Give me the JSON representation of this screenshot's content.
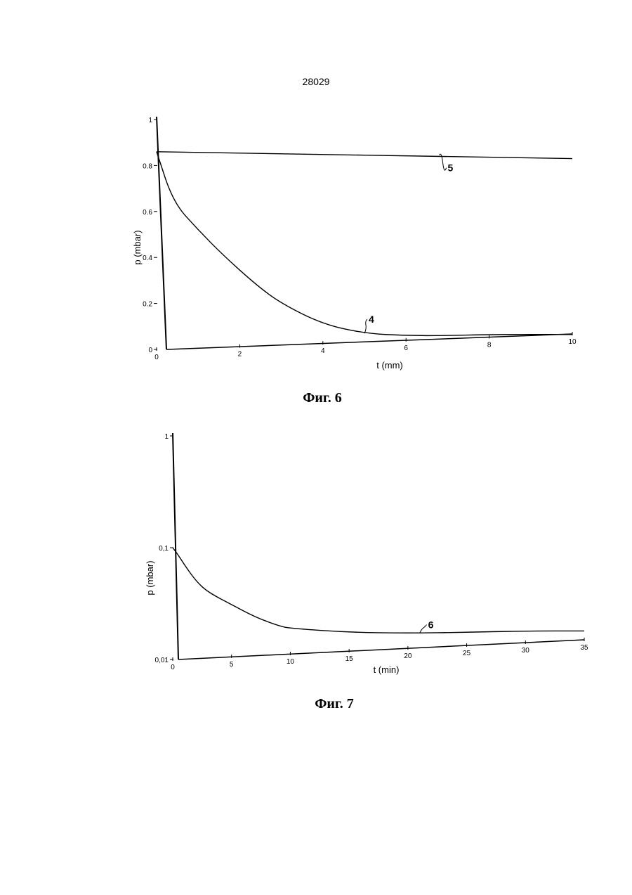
{
  "page": {
    "number": "28029"
  },
  "chart_data": [
    {
      "type": "line",
      "caption": "Фиг. 6",
      "xlabel": "t (mm)",
      "ylabel": "p (mbar)",
      "xlim": [
        0,
        10
      ],
      "ylim": [
        0,
        1
      ],
      "x_ticks": [
        0,
        2,
        4,
        6,
        8,
        10
      ],
      "x_tick_labels": [
        "0",
        "2",
        "4",
        "6",
        "8",
        "10"
      ],
      "y_ticks": [
        0,
        0.2,
        0.4,
        0.6,
        0.8,
        1
      ],
      "y_tick_labels": [
        "0",
        "0.2",
        "0.4",
        "0.6",
        "0.8",
        "1"
      ],
      "series": [
        {
          "name": "5",
          "x": [
            0,
            10
          ],
          "y": [
            0.86,
            0.83
          ]
        },
        {
          "name": "4",
          "x": [
            0,
            0.4,
            1,
            1.6,
            2.4,
            3,
            4,
            5,
            6,
            7,
            8,
            10
          ],
          "y": [
            0.86,
            0.64,
            0.52,
            0.41,
            0.28,
            0.2,
            0.11,
            0.07,
            0.06,
            0.06,
            0.065,
            0.065
          ]
        }
      ]
    },
    {
      "type": "line",
      "caption": "Фиг. 7",
      "xlabel": "t (min)",
      "ylabel": "p (mbar)",
      "xlim": [
        0,
        35
      ],
      "ylim": [
        0.01,
        1
      ],
      "y_scale": "log",
      "x_ticks": [
        0,
        5,
        10,
        15,
        20,
        25,
        30,
        35
      ],
      "x_tick_labels": [
        "0",
        "5",
        "10",
        "15",
        "20",
        "25",
        "30",
        "35"
      ],
      "y_ticks": [
        0.01,
        0.1,
        1
      ],
      "y_tick_labels": [
        "0,01",
        "0,1",
        "1"
      ],
      "series": [
        {
          "name": "6",
          "x": [
            0,
            0.5,
            1,
            2,
            3,
            5,
            7,
            9,
            10,
            15,
            20,
            25,
            30,
            35
          ],
          "y": [
            0.1,
            0.085,
            0.07,
            0.05,
            0.04,
            0.031,
            0.024,
            0.02,
            0.019,
            0.0175,
            0.0172,
            0.0175,
            0.018,
            0.018
          ]
        }
      ]
    }
  ]
}
